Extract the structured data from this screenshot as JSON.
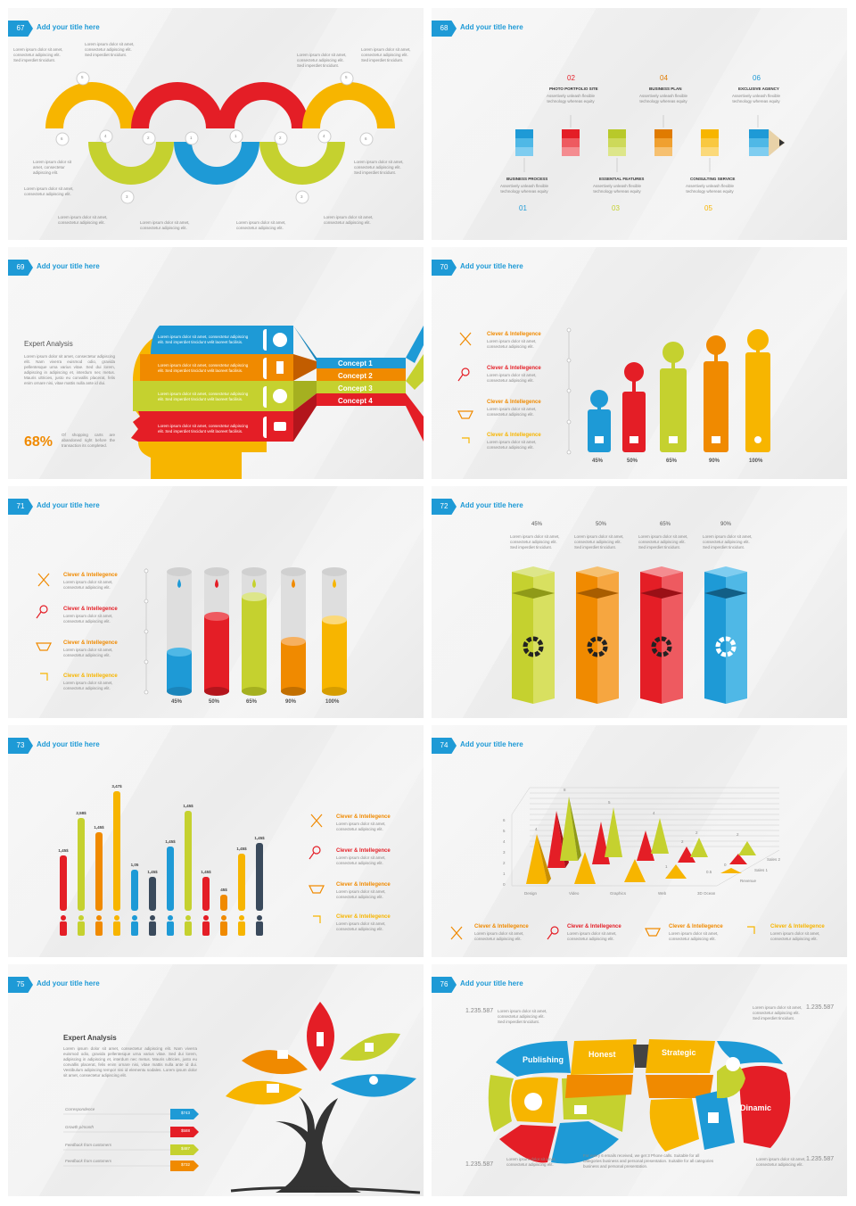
{
  "slide_title": "Add your title here",
  "lorem_short": "Lorem ipsum dolor sit amet, consectetur adipiscing elit.",
  "lorem_long": "Lorem ipsum dolor sit amet, consectetur adipiscing elit. Sed imperdiet tincidunt.",
  "clever": "Clever & Intellegence",
  "s67": {
    "num": "67",
    "labels": [
      "5",
      "6",
      "4",
      "3",
      "2",
      "1",
      "1",
      "2",
      "3",
      "4",
      "5",
      "6"
    ]
  },
  "s68": {
    "num": "68",
    "top": [
      {
        "n": "02",
        "t": "PHOTO PORTFOLIO SITE"
      },
      {
        "n": "04",
        "t": "BUSINESS PLAN"
      },
      {
        "n": "06",
        "t": "EXCLUSIVE AGENCY"
      }
    ],
    "bottom": [
      {
        "n": "01",
        "t": "BUSINESS PROCESS"
      },
      {
        "n": "03",
        "t": "ESSENTIAL FEATURES"
      },
      {
        "n": "05",
        "t": "CONSULTING SERVICE"
      }
    ],
    "desc": "Assertively unleash flexible technology whereas equity"
  },
  "s69": {
    "num": "69",
    "heading": "Expert Analysis",
    "percent": "68%",
    "body": "Lorem ipsum dolor sit amet, consectetur adipiscing elit. Nam viverra euismod odio, gravida pellentesque urna varius vitae. Sed dui lorem, adipiscing in adipiscing et, interdum nec metus. Mauris ultricies, justo eu convallis placerat, felis enim ornare nisi, vitae mattis nulla ante id dui.",
    "note": "Of shopping carts are abandoned right before the transaction its completed.",
    "concepts": [
      "Concept 1",
      "Concept 2",
      "Concept 3",
      "Concept 4"
    ],
    "band_text": "Lorem ipsum dolor sit amet, consectetur adipiscing elit. Sed imperdiet tincidunt velit laoreet facilisis."
  },
  "s70": {
    "num": "70",
    "values": [
      "45%",
      "50%",
      "65%",
      "90%",
      "100%"
    ]
  },
  "s71": {
    "num": "71",
    "values": [
      "45%",
      "50%",
      "65%",
      "90%",
      "100%"
    ]
  },
  "s72": {
    "num": "72",
    "values": [
      "45%",
      "50%",
      "65%",
      "90%"
    ]
  },
  "s73": {
    "num": "73",
    "values": [
      "1,45$",
      "2,58$",
      "1,45$",
      "3,47$",
      "1,05",
      "1,45$",
      "1,45$",
      "1,45$",
      "1,45$",
      "45$",
      "1,45$",
      "1,45$"
    ]
  },
  "s74": {
    "num": "74",
    "categories": [
      "Design",
      "Video",
      "Graphics",
      "Web",
      "3D Ocean"
    ],
    "series": [
      "Sales 2",
      "Sales 1",
      "Revenue"
    ],
    "yticks": [
      "6",
      "5",
      "4",
      "3",
      "2",
      "1",
      "0"
    ],
    "peak_labels": [
      "4",
      "8",
      "5",
      "4",
      "2",
      "2",
      "1",
      "0.5",
      "0",
      "2"
    ]
  },
  "s75": {
    "num": "75",
    "heading": "Expert Analysis",
    "body": "Lorem ipsum dolor sit amet, consectetur adipiscing elit. Nam viverra euismod odio, gravida pellentesque urna varius vitae. Sed dui lorem, adipiscing in adipiscing et, interdum nec metus. Mauris ultricies, justo eu convallis placerat, felis enim ornare nisi, vitae mattis nulla ante id dui. Vestibulum adipiscing tempor nisi id elementu sodales. Lorem ipsum dolor sit amet, consectetur adipiscing elit.",
    "rows": [
      {
        "l": "Correspondence",
        "v": "$743"
      },
      {
        "l": "Growth p/month",
        "v": "$588"
      },
      {
        "l": "Feedback from customers",
        "v": "$487"
      },
      {
        "l": "Feedback from customers",
        "v": "$732"
      }
    ]
  },
  "s76": {
    "num": "76",
    "value": "1.235.587",
    "pieces": [
      "Publishing",
      "Honest",
      "Strategic",
      "Dinamic"
    ],
    "foot": "For every 6 emails received, we get 3 Phone calls. Suitable for all categories business and personal presentation. Suitable for all categories business and personal presentation."
  }
}
